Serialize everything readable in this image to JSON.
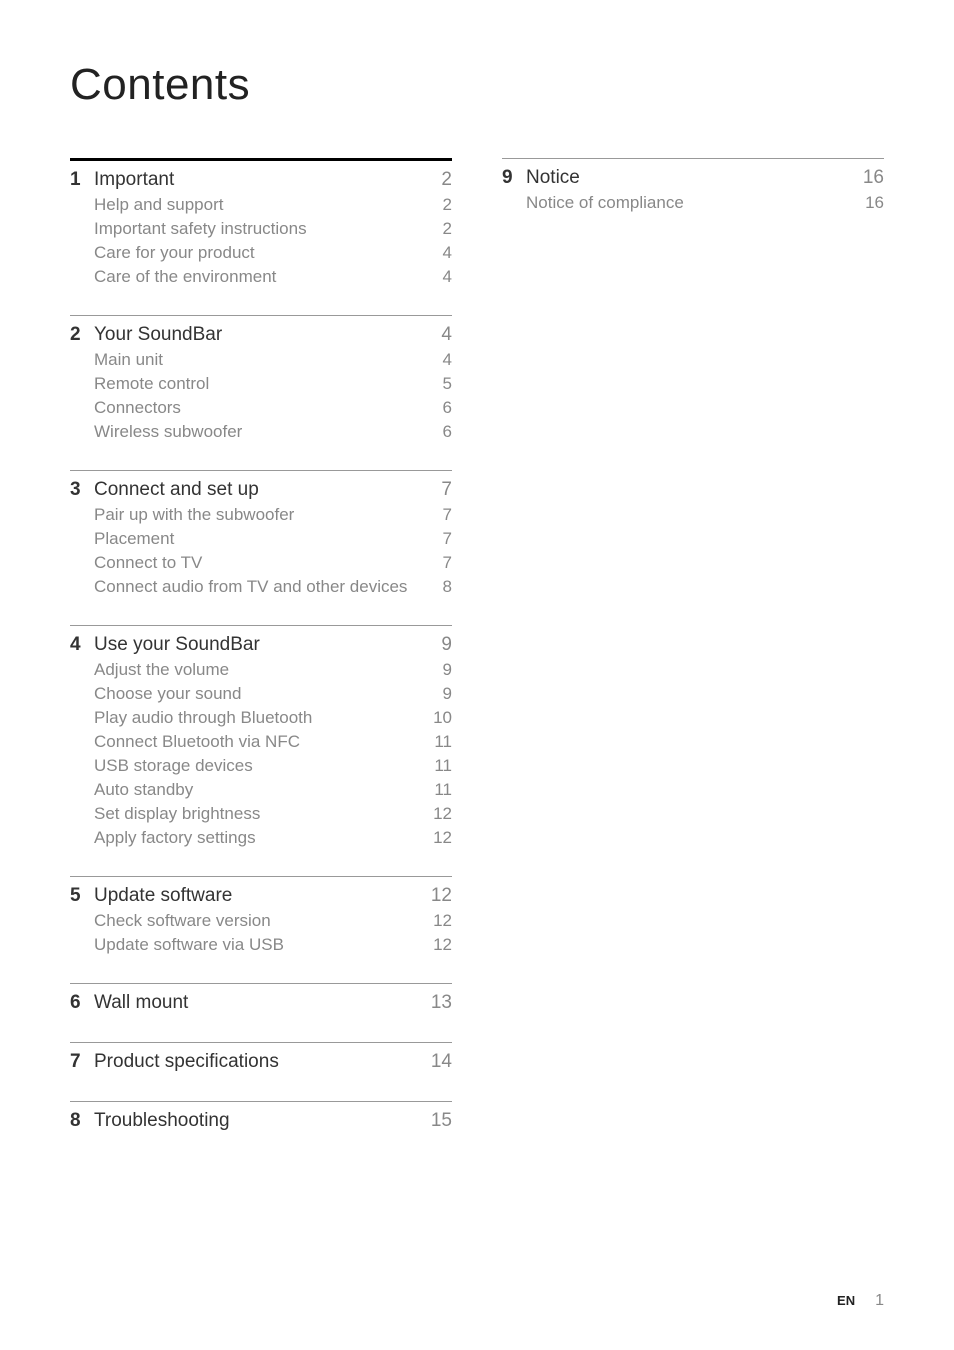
{
  "page_title": "Contents",
  "colors": {
    "background": "#ffffff",
    "title_color": "#222222",
    "section_title_color": "#333333",
    "sub_text_color": "#888888",
    "thick_rule_color": "#000000",
    "thin_rule_color": "#999999"
  },
  "typography": {
    "page_title_fontsize": 44,
    "section_title_fontsize": 19,
    "sub_fontsize": 17,
    "footer_lang_fontsize": 13,
    "footer_page_fontsize": 16
  },
  "left_column": [
    {
      "number": "1",
      "title": "Important",
      "page": "2",
      "first": true,
      "subs": [
        {
          "title": "Help and support",
          "page": "2"
        },
        {
          "title": "Important safety instructions",
          "page": "2"
        },
        {
          "title": "Care for your product",
          "page": "4"
        },
        {
          "title": "Care of the environment",
          "page": "4"
        }
      ]
    },
    {
      "number": "2",
      "title": "Your SoundBar",
      "page": "4",
      "subs": [
        {
          "title": "Main unit",
          "page": "4"
        },
        {
          "title": "Remote control",
          "page": "5"
        },
        {
          "title": "Connectors",
          "page": "6"
        },
        {
          "title": "Wireless subwoofer",
          "page": "6"
        }
      ]
    },
    {
      "number": "3",
      "title": "Connect and set up",
      "page": "7",
      "subs": [
        {
          "title": "Pair up with the subwoofer",
          "page": "7"
        },
        {
          "title": "Placement",
          "page": "7"
        },
        {
          "title": "Connect to TV",
          "page": "7"
        },
        {
          "title": "Connect audio from TV and other devices",
          "page": "8"
        }
      ]
    },
    {
      "number": "4",
      "title": "Use your SoundBar",
      "page": "9",
      "subs": [
        {
          "title": "Adjust the volume",
          "page": "9"
        },
        {
          "title": "Choose your sound",
          "page": "9"
        },
        {
          "title": "Play audio through Bluetooth",
          "page": "10"
        },
        {
          "title": "Connect Bluetooth via NFC",
          "page": "11"
        },
        {
          "title": "USB storage devices",
          "page": "11"
        },
        {
          "title": "Auto standby",
          "page": "11"
        },
        {
          "title": "Set display brightness",
          "page": "12"
        },
        {
          "title": "Apply factory settings",
          "page": "12"
        }
      ]
    },
    {
      "number": "5",
      "title": "Update software",
      "page": "12",
      "subs": [
        {
          "title": "Check software version",
          "page": "12"
        },
        {
          "title": "Update software via USB",
          "page": "12"
        }
      ]
    },
    {
      "number": "6",
      "title": "Wall mount",
      "page": "13",
      "subs": []
    },
    {
      "number": "7",
      "title": "Product specifications",
      "page": "14",
      "subs": []
    },
    {
      "number": "8",
      "title": "Troubleshooting",
      "page": "15",
      "subs": []
    }
  ],
  "right_column": [
    {
      "number": "9",
      "title": "Notice",
      "page": "16",
      "subs": [
        {
          "title": "Notice of compliance",
          "page": "16"
        }
      ]
    }
  ],
  "footer": {
    "lang": "EN",
    "page": "1"
  }
}
